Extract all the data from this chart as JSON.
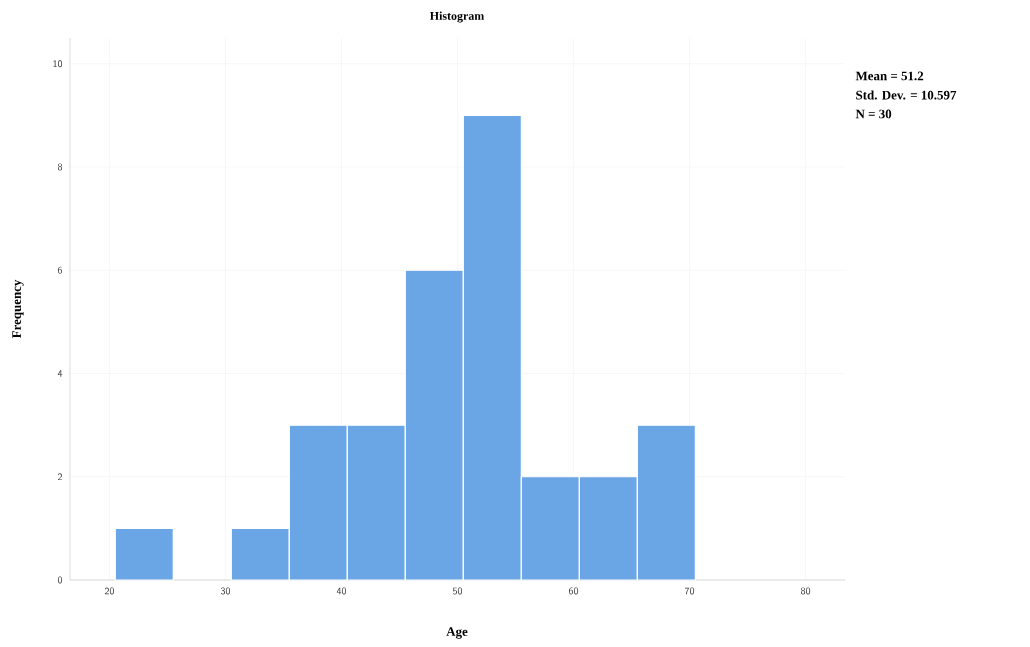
{
  "chart_data": {
    "type": "histogram",
    "title": "Histogram",
    "xlabel": "Age",
    "ylabel": "Frequency",
    "bins": [
      20.5,
      25.5,
      30.5,
      35.5,
      40.5,
      45.5,
      50.5,
      55.5,
      60.5,
      65.5,
      70.5
    ],
    "values": [
      1,
      0,
      1,
      3,
      3,
      6,
      9,
      2,
      2,
      3
    ],
    "color": "#6aa5e6",
    "xlim": [
      16.6,
      83.4
    ],
    "xticks": [
      20,
      30,
      40,
      50,
      60,
      70,
      80
    ],
    "ylim": [
      0,
      10.5
    ],
    "yticks": [
      0,
      2,
      4,
      6,
      8,
      10
    ],
    "grid": true,
    "annotations": [
      "Mean = 51.2",
      "Std. Dev. = 10.597",
      "N = 30"
    ]
  }
}
